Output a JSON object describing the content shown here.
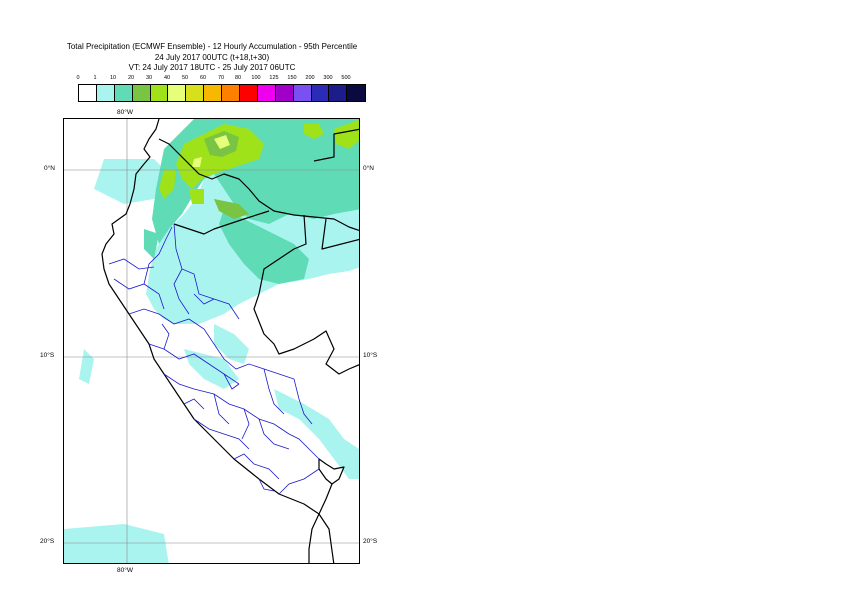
{
  "title": {
    "line1": "Total Precipitation (ECMWF Ensemble) - 12 Hourly Accumulation - 95th Percentile",
    "line2": "24 July 2017 00UTC (t+18,t+30)",
    "line3": "VT: 24 July 2017 18UTC - 25 July 2017 06UTC"
  },
  "legend": {
    "ticks": [
      "0",
      "1",
      "10",
      "20",
      "30",
      "40",
      "50",
      "60",
      "70",
      "80",
      "100",
      "125",
      "150",
      "200",
      "300",
      "500"
    ],
    "colors": [
      "#ffffff",
      "#aaf4f0",
      "#5fdcb6",
      "#79c442",
      "#9fe21a",
      "#e6ff7a",
      "#d8df1b",
      "#f6b800",
      "#ff7f00",
      "#ff0000",
      "#ee00ee",
      "#a100c8",
      "#7a50f0",
      "#2b2bb8",
      "#1c1c8a",
      "#0a0a40"
    ]
  },
  "map": {
    "lat_labels_left": [
      "0°N",
      "10°S",
      "20°S"
    ],
    "lat_labels_right": [
      "0°N",
      "10°S",
      "20°S"
    ],
    "lon_label_top": "80°W",
    "lon_label_bottom": "80°W"
  }
}
